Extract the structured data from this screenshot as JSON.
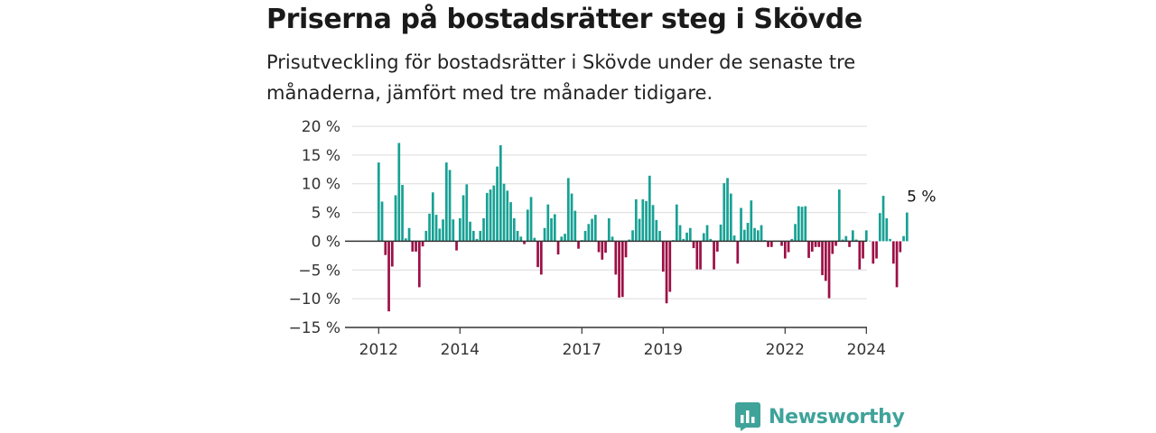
{
  "title": "Priserna på bostadsrätter steg i Skövde",
  "subtitle": "Prisutveckling för bostadsrätter i Skövde under de senaste tre månaderna, jämfört med tre månader tidigare.",
  "brand": {
    "name": "Newsworthy",
    "icon": "newsworthy-logo-icon",
    "color": "#3fa39a"
  },
  "colors": {
    "positive": "#17a194",
    "negative": "#9c0f45",
    "grid": "#dcdcdc",
    "zero_line": "#333333"
  },
  "chart_data": {
    "type": "bar",
    "title": "Priserna på bostadsrätter steg i Skövde",
    "subtitle": "Prisutveckling för bostadsrätter i Skövde under de senaste tre månaderna, jämfört med tre månader tidigare.",
    "xlabel": "",
    "ylabel": "",
    "ylim": [
      -15,
      20
    ],
    "y_ticks": [
      "20 %",
      "15 %",
      "10 %",
      "5 %",
      "0 %",
      "−5 %",
      "−10 %",
      "−15 %"
    ],
    "y_tick_values": [
      20,
      15,
      10,
      5,
      0,
      -5,
      -10,
      -15
    ],
    "x_ticks": [
      "2012",
      "2014",
      "2017",
      "2019",
      "2022",
      "2024"
    ],
    "x_tick_values": [
      2012,
      2014,
      2017,
      2019,
      2022,
      2024
    ],
    "grid": "horizontal",
    "legend": "none",
    "last_value_label": "5 %",
    "series": [
      {
        "start": "2012-01",
        "frequency": "monthly",
        "unit": "%",
        "values": [
          13.7,
          6.9,
          -2.4,
          -12.2,
          -4.4,
          8.0,
          17.1,
          9.8,
          0.5,
          2.3,
          -1.8,
          -1.8,
          -8.0,
          -0.9,
          1.8,
          4.8,
          8.5,
          4.6,
          2.2,
          3.8,
          13.7,
          12.4,
          3.8,
          -1.6,
          4.0,
          8.0,
          9.9,
          3.4,
          1.8,
          0.4,
          1.8,
          4.0,
          8.4,
          9.0,
          9.7,
          13.0,
          16.7,
          10.0,
          8.8,
          6.8,
          4.0,
          1.8,
          0.8,
          -0.5,
          5.5,
          7.7,
          0.6,
          -4.5,
          -5.8,
          2.3,
          6.4,
          4.0,
          4.7,
          -2.3,
          0.8,
          1.3,
          11.0,
          8.3,
          5.3,
          -1.3,
          0.2,
          1.8,
          3.0,
          3.9,
          4.6,
          -1.9,
          -3.2,
          -2.0,
          4.0,
          0.8,
          -5.8,
          -9.8,
          -9.7,
          -2.8,
          0.3,
          1.9,
          7.3,
          3.9,
          7.3,
          7.0,
          11.4,
          6.3,
          3.7,
          1.8,
          -5.3,
          -10.8,
          -8.8,
          0.2,
          6.4,
          2.8,
          0.4,
          1.5,
          2.3,
          -1.2,
          -4.9,
          -4.9,
          1.4,
          2.8,
          0.4,
          -4.9,
          -1.8,
          2.9,
          10.1,
          11.0,
          8.3,
          1.0,
          -3.9,
          5.8,
          2.0,
          3.2,
          7.1,
          2.3,
          1.9,
          2.8,
          0.2,
          -1.0,
          -1.0,
          0.1,
          0.1,
          -0.8,
          -3.0,
          -1.9,
          0.4,
          3.0,
          6.1,
          6.0,
          6.1,
          -2.9,
          -1.8,
          -1.0,
          -1.0,
          -5.9,
          -6.9,
          -9.9,
          -2.2,
          -0.8,
          9.0,
          0.3,
          0.9,
          -1.0,
          1.9,
          0.3,
          -4.9,
          -3.0,
          1.9,
          0.1,
          -3.9,
          -3.0,
          4.9,
          7.9,
          4.0,
          0.4,
          -3.9,
          -8.0,
          -1.9,
          0.9,
          5.0
        ]
      }
    ]
  }
}
